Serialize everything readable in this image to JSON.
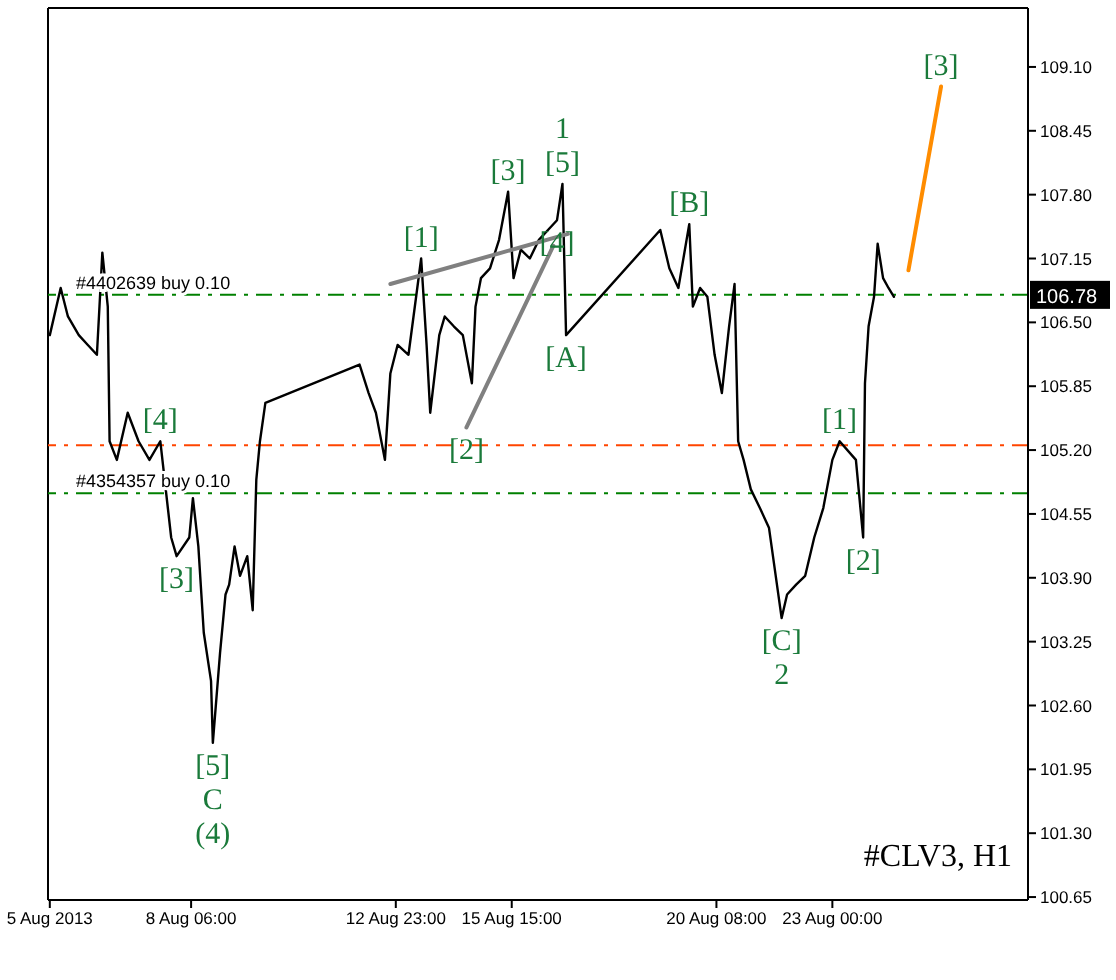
{
  "chart_data": {
    "type": "line",
    "title": "#CLV3, H1",
    "xlim": [
      "2013-08-04T23:00",
      "2013-08-27T12:00"
    ],
    "ylim": [
      100.62,
      109.7
    ],
    "xticks": [
      {
        "value": "2013-08-05T00:00",
        "label": "5 Aug 2013"
      },
      {
        "value": "2013-08-08T06:00",
        "label": "8 Aug 06:00"
      },
      {
        "value": "2013-08-12T23:00",
        "label": "12 Aug 23:00"
      },
      {
        "value": "2013-08-15T15:00",
        "label": "15 Aug 15:00"
      },
      {
        "value": "2013-08-20T08:00",
        "label": "20 Aug 08:00"
      },
      {
        "value": "2013-08-23T00:00",
        "label": "23 Aug 00:00"
      }
    ],
    "yticks": [
      {
        "value": 100.65,
        "label": "100.65"
      },
      {
        "value": 101.3,
        "label": "101.30"
      },
      {
        "value": 101.95,
        "label": "101.95"
      },
      {
        "value": 102.6,
        "label": "102.60"
      },
      {
        "value": 103.25,
        "label": "103.25"
      },
      {
        "value": 103.9,
        "label": "103.90"
      },
      {
        "value": 104.55,
        "label": "104.55"
      },
      {
        "value": 105.2,
        "label": "105.20"
      },
      {
        "value": 105.85,
        "label": "105.85"
      },
      {
        "value": 106.5,
        "label": "106.50"
      },
      {
        "value": 107.15,
        "label": "107.15"
      },
      {
        "value": 107.8,
        "label": "107.80"
      },
      {
        "value": 108.45,
        "label": "108.45"
      },
      {
        "value": 109.1,
        "label": "109.10"
      }
    ],
    "grid": false,
    "legend": false,
    "marker": "none",
    "line_style": "solid",
    "series": [
      {
        "color": "#000000",
        "x": [
          "2013-08-05T00:00",
          "2013-08-05T06:00",
          "2013-08-05T10:00",
          "2013-08-05T16:00",
          "2013-08-05T21:00",
          "2013-08-06T02:00",
          "2013-08-06T05:00",
          "2013-08-06T08:00",
          "2013-08-06T09:00",
          "2013-08-06T13:00",
          "2013-08-06T19:00",
          "2013-08-07T01:00",
          "2013-08-07T07:00",
          "2013-08-07T13:00",
          "2013-08-07T19:00",
          "2013-08-07T22:00",
          "2013-08-08T05:00",
          "2013-08-08T07:00",
          "2013-08-08T10:00",
          "2013-08-08T13:00",
          "2013-08-08T17:00",
          "2013-08-08T18:00",
          "2013-08-08T22:00",
          "2013-08-09T01:00",
          "2013-08-09T03:00",
          "2013-08-09T06:00",
          "2013-08-09T09:00",
          "2013-08-09T13:00",
          "2013-08-09T16:00",
          "2013-08-09T18:00",
          "2013-08-09T20:00",
          "2013-08-09T23:00",
          "2013-08-12T03:00",
          "2013-08-12T08:00",
          "2013-08-12T12:00",
          "2013-08-12T17:00",
          "2013-08-12T20:00",
          "2013-08-13T00:00",
          "2013-08-13T06:00",
          "2013-08-13T13:00",
          "2013-08-13T16:00",
          "2013-08-13T18:00",
          "2013-08-13T23:00",
          "2013-08-14T02:00",
          "2013-08-14T07:00",
          "2013-08-14T12:00",
          "2013-08-14T17:00",
          "2013-08-14T19:00",
          "2013-08-14T22:00",
          "2013-08-15T03:00",
          "2013-08-15T08:00",
          "2013-08-15T13:00",
          "2013-08-15T16:00",
          "2013-08-15T20:00",
          "2013-08-16T01:00",
          "2013-08-16T06:00",
          "2013-08-16T11:00",
          "2013-08-16T16:00",
          "2013-08-16T19:00",
          "2013-08-16T21:00",
          "2013-08-19T01:00",
          "2013-08-19T06:00",
          "2013-08-19T11:00",
          "2013-08-19T17:00",
          "2013-08-19T19:00",
          "2013-08-19T23:00",
          "2013-08-20T03:00",
          "2013-08-20T07:00",
          "2013-08-20T11:00",
          "2013-08-20T15:00",
          "2013-08-20T18:00",
          "2013-08-20T20:00",
          "2013-08-20T23:00",
          "2013-08-21T03:00",
          "2013-08-21T08:00",
          "2013-08-21T13:00",
          "2013-08-21T20:00",
          "2013-08-21T23:00",
          "2013-08-22T04:00",
          "2013-08-22T09:00",
          "2013-08-22T14:00",
          "2013-08-22T19:00",
          "2013-08-23T00:00",
          "2013-08-23T04:00",
          "2013-08-23T13:00",
          "2013-08-23T17:00",
          "2013-08-23T18:00",
          "2013-08-23T20:00",
          "2013-08-23T23:00",
          "2013-08-24T01:00",
          "2013-08-24T04:00",
          "2013-08-24T07:00",
          "2013-08-24T10:00"
        ],
        "values": [
          106.37,
          106.85,
          106.56,
          106.37,
          106.27,
          106.17,
          107.21,
          106.66,
          105.29,
          105.1,
          105.58,
          105.29,
          105.1,
          105.29,
          104.31,
          104.12,
          104.31,
          104.71,
          104.22,
          103.34,
          102.85,
          102.22,
          103.14,
          103.73,
          103.83,
          104.22,
          103.92,
          104.12,
          103.57,
          104.9,
          105.29,
          105.68,
          106.07,
          105.78,
          105.58,
          105.1,
          105.98,
          106.27,
          106.17,
          107.15,
          106.27,
          105.58,
          106.37,
          106.56,
          106.46,
          106.37,
          105.88,
          106.66,
          106.95,
          107.05,
          107.34,
          107.83,
          106.95,
          107.24,
          107.15,
          107.34,
          107.44,
          107.54,
          107.91,
          106.37,
          107.44,
          107.05,
          106.85,
          107.5,
          106.66,
          106.85,
          106.76,
          106.17,
          105.78,
          106.46,
          106.89,
          105.29,
          105.1,
          104.8,
          104.61,
          104.41,
          103.49,
          103.73,
          103.83,
          103.92,
          104.31,
          104.61,
          105.1,
          105.29,
          105.1,
          104.31,
          105.88,
          106.46,
          106.76,
          107.3,
          106.95,
          106.85,
          106.76
        ]
      },
      {
        "color": "#ff8c00",
        "x": [
          "2013-08-24T18:00",
          "2013-08-25T12:00"
        ],
        "values": [
          107.03,
          108.9
        ]
      },
      {
        "color": "#808080",
        "x": [
          "2013-08-12T20:00",
          "2013-08-16T22:00"
        ],
        "values": [
          106.89,
          107.4
        ]
      },
      {
        "color": "#808080",
        "x": [
          "2013-08-14T14:00",
          "2013-08-16T14:00"
        ],
        "values": [
          105.43,
          107.28
        ]
      }
    ],
    "ref_lines": [
      {
        "axis": "y",
        "value": 106.78,
        "label": "#4402639 buy 0.10",
        "color": "#008000",
        "line_style": "dashed"
      },
      {
        "axis": "y",
        "value": 105.25,
        "color": "#ff4500",
        "line_style": "dashed"
      },
      {
        "axis": "y",
        "value": 104.76,
        "label": "#4354357 buy 0.10",
        "color": "#008000",
        "line_style": "dashed"
      }
    ],
    "annotations": [
      {
        "text": "106.78",
        "y": 106.78
      },
      {
        "text": "[1]",
        "x": "2013-08-13T13:00",
        "y": 107.15
      },
      {
        "text": "[3]",
        "x": "2013-08-15T13:00",
        "y": 107.83
      },
      {
        "text": "[5]",
        "x": "2013-08-16T19:00",
        "y": 107.91
      },
      {
        "text": "1",
        "x": "2013-08-16T19:00",
        "y": 107.91
      },
      {
        "text": "[B]",
        "x": "2013-08-19T17:00",
        "y": 107.5
      },
      {
        "text": "[4]",
        "x": "2013-08-16T16:00",
        "y": 107.54
      },
      {
        "text": "[A]",
        "x": "2013-08-16T21:00",
        "y": 106.37
      },
      {
        "text": "[2]",
        "x": "2013-08-14T14:00",
        "y": 105.43
      },
      {
        "text": "[4]",
        "x": "2013-08-07T13:00",
        "y": 105.29
      },
      {
        "text": "[3]",
        "x": "2013-08-07T22:00",
        "y": 104.12
      },
      {
        "text": "[5]",
        "x": "2013-08-08T18:00",
        "y": 102.22
      },
      {
        "text": "C",
        "x": "2013-08-08T18:00",
        "y": 102.22
      },
      {
        "text": "(4)",
        "x": "2013-08-08T18:00",
        "y": 102.22
      },
      {
        "text": "[C]",
        "x": "2013-08-21T20:00",
        "y": 103.49
      },
      {
        "text": "2",
        "x": "2013-08-21T20:00",
        "y": 103.49
      },
      {
        "text": "[1]",
        "x": "2013-08-23T04:00",
        "y": 105.29
      },
      {
        "text": "[2]",
        "x": "2013-08-23T17:00",
        "y": 104.31
      },
      {
        "text": "[3]",
        "x": "2013-08-25T12:00",
        "y": 108.9
      }
    ]
  }
}
